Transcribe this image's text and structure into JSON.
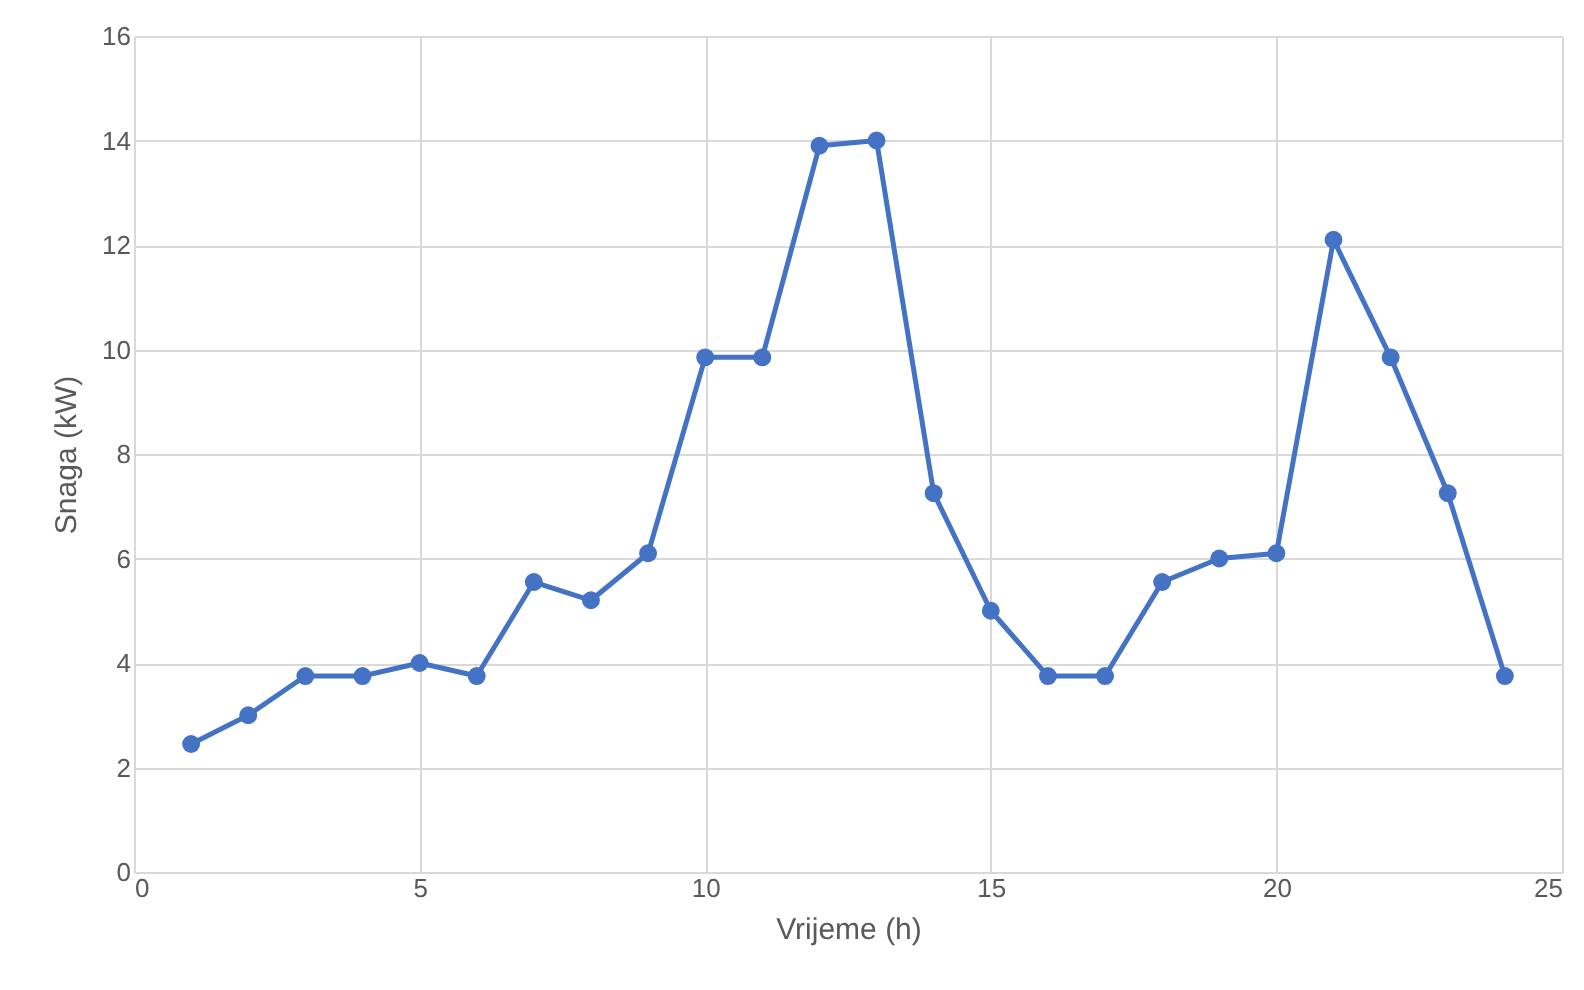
{
  "chart_data": {
    "type": "line",
    "xlabel": "Vrijeme (h)",
    "ylabel": "Snaga (kW)",
    "x": [
      1,
      2,
      3,
      4,
      5,
      6,
      7,
      8,
      9,
      10,
      11,
      12,
      13,
      14,
      15,
      16,
      17,
      18,
      19,
      20,
      21,
      22,
      23,
      24
    ],
    "series": [
      {
        "color": "#4472c4",
        "values": [
          2.45,
          3.0,
          3.75,
          3.75,
          4.0,
          3.75,
          5.55,
          5.2,
          6.1,
          9.85,
          9.85,
          13.9,
          14.0,
          7.25,
          5.0,
          3.75,
          3.75,
          5.55,
          6.0,
          6.1,
          12.1,
          9.85,
          7.25,
          3.75
        ]
      }
    ],
    "xlim": [
      0,
      25
    ],
    "xticks": [
      0,
      5,
      10,
      15,
      20,
      25
    ],
    "ylim": [
      0,
      16
    ],
    "yticks": [
      0,
      2,
      4,
      6,
      8,
      10,
      12,
      14,
      16
    ],
    "grid": true,
    "marker": "circle",
    "line_style": "solid"
  }
}
